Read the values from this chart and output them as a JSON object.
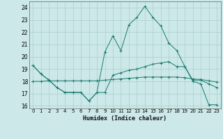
{
  "title": "",
  "xlabel": "Humidex (Indice chaleur)",
  "ylabel": "",
  "background_color": "#cce8e8",
  "grid_color": "#aacfcf",
  "line_color": "#1a7a6e",
  "xlim": [
    -0.5,
    23.5
  ],
  "ylim": [
    15.8,
    24.5
  ],
  "yticks": [
    16,
    17,
    18,
    19,
    20,
    21,
    22,
    23,
    24
  ],
  "xticks": [
    0,
    1,
    2,
    3,
    4,
    5,
    6,
    7,
    8,
    9,
    10,
    11,
    12,
    13,
    14,
    15,
    16,
    17,
    18,
    19,
    20,
    21,
    22,
    23
  ],
  "series": [
    {
      "x": [
        0,
        1,
        2,
        3,
        4,
        5,
        6,
        7,
        8,
        9,
        10,
        11,
        12,
        13,
        14,
        15,
        16,
        17,
        18,
        19,
        20,
        21,
        22,
        23
      ],
      "y": [
        19.3,
        18.6,
        18.1,
        17.5,
        17.1,
        17.1,
        17.1,
        16.4,
        17.1,
        17.1,
        18.5,
        18.7,
        18.9,
        19.0,
        19.2,
        19.4,
        19.5,
        19.6,
        19.2,
        19.2,
        18.0,
        17.8,
        16.1,
        16.1
      ]
    },
    {
      "x": [
        0,
        1,
        2,
        3,
        4,
        5,
        6,
        7,
        8,
        9,
        10,
        11,
        12,
        13,
        14,
        15,
        16,
        17,
        18,
        19,
        20,
        21,
        22,
        23
      ],
      "y": [
        18.0,
        18.0,
        18.05,
        18.05,
        18.05,
        18.05,
        18.05,
        18.05,
        18.05,
        18.1,
        18.15,
        18.2,
        18.25,
        18.3,
        18.35,
        18.35,
        18.35,
        18.35,
        18.35,
        18.3,
        18.2,
        18.15,
        18.05,
        17.95
      ]
    },
    {
      "x": [
        0,
        1,
        2,
        3,
        4,
        5,
        6,
        7,
        8,
        9,
        10,
        11,
        12,
        13,
        14,
        15,
        16,
        17,
        18,
        19,
        20,
        21,
        22,
        23
      ],
      "y": [
        19.3,
        18.6,
        18.1,
        17.5,
        17.1,
        17.1,
        17.1,
        16.4,
        17.1,
        20.4,
        21.7,
        20.5,
        22.6,
        23.2,
        24.1,
        23.2,
        22.5,
        21.1,
        20.5,
        19.2,
        18.1,
        18.1,
        17.8,
        17.5
      ]
    }
  ]
}
